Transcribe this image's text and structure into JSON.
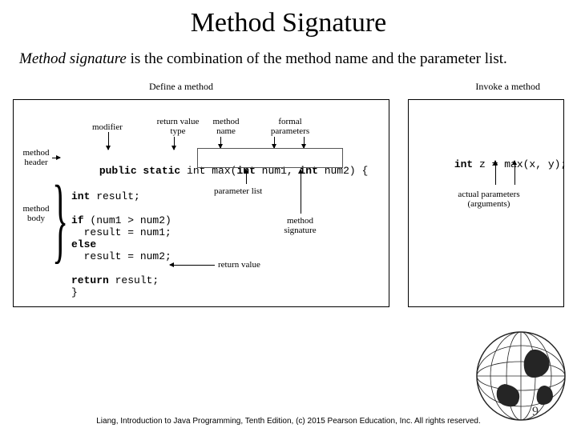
{
  "title": "Method Signature",
  "body": {
    "term": "Method signature",
    "rest": " is the combination of the method name and the parameter list."
  },
  "define": {
    "title": "Define a method",
    "labels": {
      "modifier": "modifier",
      "rettype": "return value\ntype",
      "mname": "method\nname",
      "formal": "formal\nparameters",
      "mheader": "method\nheader",
      "mbody": "method\nbody",
      "plist": "parameter list",
      "msig": "method\nsignature",
      "retval": "return value"
    },
    "header_code": {
      "ps": "public static",
      "int1": " int ",
      "max": "max",
      "open": "(",
      "int2": "int",
      "n1": " num1, ",
      "int3": "int",
      "n2": " num2",
      "close": ") {"
    },
    "body_code": {
      "l1a": "int",
      "l1b": " result;",
      "l2a": "if",
      "l2b": " (num1 > num2)",
      "l3": "  result = num1;",
      "l4a": "else",
      "l5": "  result = num2;",
      "l6a": "return",
      "l6b": " result;",
      "l7": "}"
    }
  },
  "invoke": {
    "title": "Invoke a method",
    "code": {
      "int": "int",
      "rest": " z = max(x, y);"
    },
    "label": "actual parameters\n(arguments)"
  },
  "footer": "Liang, Introduction to Java Programming, Tenth Edition, (c) 2015 Pearson Education, Inc. All rights reserved.",
  "pagenum": "9"
}
